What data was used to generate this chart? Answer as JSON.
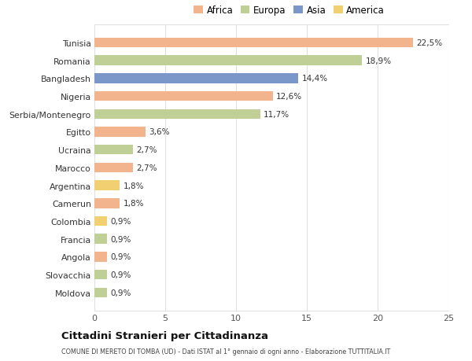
{
  "countries": [
    "Tunisia",
    "Romania",
    "Bangladesh",
    "Nigeria",
    "Serbia/Montenegro",
    "Egitto",
    "Ucraina",
    "Marocco",
    "Argentina",
    "Camerun",
    "Colombia",
    "Francia",
    "Angola",
    "Slovacchia",
    "Moldova"
  ],
  "values": [
    22.5,
    18.9,
    14.4,
    12.6,
    11.7,
    3.6,
    2.7,
    2.7,
    1.8,
    1.8,
    0.9,
    0.9,
    0.9,
    0.9,
    0.9
  ],
  "labels": [
    "22,5%",
    "18,9%",
    "14,4%",
    "12,6%",
    "11,7%",
    "3,6%",
    "2,7%",
    "2,7%",
    "1,8%",
    "1,8%",
    "0,9%",
    "0,9%",
    "0,9%",
    "0,9%",
    "0,9%"
  ],
  "continents": [
    "Africa",
    "Europa",
    "Asia",
    "Africa",
    "Europa",
    "Africa",
    "Europa",
    "Africa",
    "America",
    "Africa",
    "America",
    "Europa",
    "Africa",
    "Europa",
    "Europa"
  ],
  "continent_colors": {
    "Africa": "#F2B48C",
    "Europa": "#BFCF96",
    "Asia": "#7B96C8",
    "America": "#F0D070"
  },
  "legend_order": [
    "Africa",
    "Europa",
    "Asia",
    "America"
  ],
  "title": "Cittadini Stranieri per Cittadinanza",
  "subtitle": "COMUNE DI MERETO DI TOMBA (UD) - Dati ISTAT al 1° gennaio di ogni anno - Elaborazione TUTTITALIA.IT",
  "xlim": [
    0,
    25
  ],
  "xticks": [
    0,
    5,
    10,
    15,
    20,
    25
  ],
  "background_color": "#ffffff",
  "bar_height": 0.55,
  "grid_color": "#e0e0e0"
}
